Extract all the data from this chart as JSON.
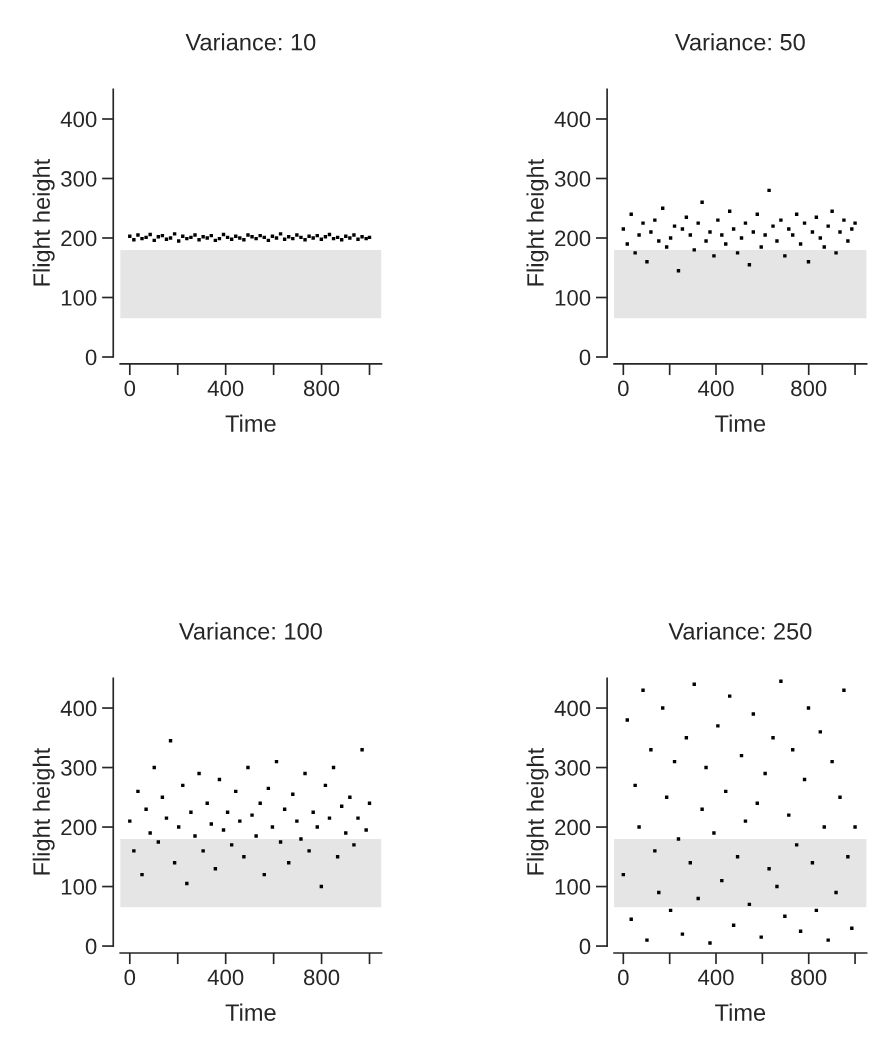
{
  "chart_data": [
    {
      "type": "scatter",
      "title": "Variance: 10",
      "xlabel": "Time",
      "ylabel": "Flight height",
      "xlim": [
        -40,
        1050
      ],
      "ylim": [
        0,
        450
      ],
      "xticks": [
        0,
        {
          "value": 200,
          "label": null
        },
        400,
        {
          "value": 600,
          "label": null
        },
        800,
        {
          "value": 1000,
          "label": null
        }
      ],
      "yticks": [
        0,
        100,
        200,
        300,
        400
      ],
      "grid": false,
      "legend": false,
      "marker": "square",
      "bands": [
        {
          "axis": "y",
          "from": 65,
          "to": 180,
          "color": "#e5e5e5"
        }
      ],
      "series": [
        {
          "color": "#000000",
          "x": [
            0,
            17,
            34,
            51,
            68,
            85,
            102,
            119,
            136,
            153,
            170,
            187,
            204,
            221,
            238,
            255,
            272,
            289,
            306,
            323,
            340,
            357,
            374,
            391,
            408,
            425,
            442,
            459,
            476,
            493,
            510,
            527,
            544,
            561,
            578,
            595,
            612,
            629,
            646,
            663,
            680,
            697,
            714,
            731,
            748,
            765,
            782,
            799,
            816,
            833,
            850,
            867,
            884,
            901,
            918,
            935,
            952,
            969,
            986,
            1000
          ],
          "values": [
            203,
            197,
            205,
            199,
            201,
            206,
            196,
            202,
            204,
            198,
            200,
            207,
            195,
            203,
            199,
            201,
            205,
            197,
            202,
            200,
            204,
            196,
            199,
            206,
            201,
            198,
            203,
            200,
            197,
            205,
            202,
            199,
            204,
            201,
            196,
            203,
            200,
            207,
            198,
            202,
            199,
            205,
            201,
            197,
            203,
            200,
            204,
            198,
            202,
            206,
            199,
            201,
            197,
            203,
            200,
            205,
            198,
            202,
            199,
            201
          ]
        }
      ]
    },
    {
      "type": "scatter",
      "title": "Variance: 50",
      "xlabel": "Time",
      "ylabel": "Flight height",
      "xlim": [
        -40,
        1050
      ],
      "ylim": [
        0,
        450
      ],
      "xticks": [
        0,
        {
          "value": 200,
          "label": null
        },
        400,
        {
          "value": 600,
          "label": null
        },
        800,
        {
          "value": 1000,
          "label": null
        }
      ],
      "yticks": [
        0,
        100,
        200,
        300,
        400
      ],
      "grid": false,
      "legend": false,
      "marker": "square",
      "bands": [
        {
          "axis": "y",
          "from": 65,
          "to": 180,
          "color": "#e5e5e5"
        }
      ],
      "series": [
        {
          "color": "#000000",
          "x": [
            0,
            17,
            34,
            51,
            68,
            85,
            102,
            119,
            136,
            153,
            170,
            187,
            204,
            221,
            238,
            255,
            272,
            289,
            306,
            323,
            340,
            357,
            374,
            391,
            408,
            425,
            442,
            459,
            476,
            493,
            510,
            527,
            544,
            561,
            578,
            595,
            612,
            629,
            646,
            663,
            680,
            697,
            714,
            731,
            748,
            765,
            782,
            799,
            816,
            833,
            850,
            867,
            884,
            901,
            918,
            935,
            952,
            969,
            986,
            1000
          ],
          "values": [
            215,
            190,
            240,
            175,
            205,
            225,
            160,
            210,
            230,
            195,
            250,
            185,
            200,
            220,
            145,
            215,
            235,
            205,
            180,
            225,
            260,
            195,
            210,
            170,
            230,
            205,
            190,
            245,
            215,
            175,
            200,
            225,
            155,
            210,
            240,
            185,
            205,
            280,
            220,
            195,
            230,
            170,
            215,
            205,
            240,
            190,
            225,
            160,
            210,
            235,
            200,
            185,
            220,
            245,
            175,
            210,
            230,
            195,
            215,
            225
          ]
        }
      ]
    },
    {
      "type": "scatter",
      "title": "Variance: 100",
      "xlabel": "Time",
      "ylabel": "Flight height",
      "xlim": [
        -40,
        1050
      ],
      "ylim": [
        0,
        450
      ],
      "xticks": [
        0,
        {
          "value": 200,
          "label": null
        },
        400,
        {
          "value": 600,
          "label": null
        },
        800,
        {
          "value": 1000,
          "label": null
        }
      ],
      "yticks": [
        0,
        100,
        200,
        300,
        400
      ],
      "grid": false,
      "legend": false,
      "marker": "square",
      "bands": [
        {
          "axis": "y",
          "from": 65,
          "to": 180,
          "color": "#e5e5e5"
        }
      ],
      "series": [
        {
          "color": "#000000",
          "x": [
            0,
            17,
            34,
            51,
            68,
            85,
            102,
            119,
            136,
            153,
            170,
            187,
            204,
            221,
            238,
            255,
            272,
            289,
            306,
            323,
            340,
            357,
            374,
            391,
            408,
            425,
            442,
            459,
            476,
            493,
            510,
            527,
            544,
            561,
            578,
            595,
            612,
            629,
            646,
            663,
            680,
            697,
            714,
            731,
            748,
            765,
            782,
            799,
            816,
            833,
            850,
            867,
            884,
            901,
            918,
            935,
            952,
            969,
            986,
            1000
          ],
          "values": [
            210,
            160,
            260,
            120,
            230,
            190,
            300,
            175,
            250,
            215,
            345,
            140,
            200,
            270,
            105,
            225,
            185,
            290,
            160,
            240,
            205,
            130,
            280,
            195,
            225,
            170,
            260,
            210,
            150,
            300,
            220,
            185,
            240,
            120,
            265,
            200,
            310,
            175,
            230,
            140,
            255,
            210,
            180,
            290,
            160,
            225,
            200,
            100,
            270,
            215,
            300,
            150,
            235,
            190,
            250,
            170,
            215,
            330,
            195,
            240
          ]
        }
      ]
    },
    {
      "type": "scatter",
      "title": "Variance: 250",
      "xlabel": "Time",
      "ylabel": "Flight height",
      "xlim": [
        -40,
        1050
      ],
      "ylim": [
        0,
        450
      ],
      "xticks": [
        0,
        {
          "value": 200,
          "label": null
        },
        400,
        {
          "value": 600,
          "label": null
        },
        800,
        {
          "value": 1000,
          "label": null
        }
      ],
      "yticks": [
        0,
        100,
        200,
        300,
        400
      ],
      "grid": false,
      "legend": false,
      "marker": "square",
      "bands": [
        {
          "axis": "y",
          "from": 65,
          "to": 180,
          "color": "#e5e5e5"
        }
      ],
      "series": [
        {
          "color": "#000000",
          "x": [
            0,
            17,
            34,
            51,
            68,
            85,
            102,
            119,
            136,
            153,
            170,
            187,
            204,
            221,
            238,
            255,
            272,
            289,
            306,
            323,
            340,
            357,
            374,
            391,
            408,
            425,
            442,
            459,
            476,
            493,
            510,
            527,
            544,
            561,
            578,
            595,
            612,
            629,
            646,
            663,
            680,
            697,
            714,
            731,
            748,
            765,
            782,
            799,
            816,
            833,
            850,
            867,
            884,
            901,
            918,
            935,
            952,
            969,
            986,
            1000
          ],
          "values": [
            120,
            380,
            45,
            270,
            200,
            430,
            10,
            330,
            160,
            90,
            400,
            250,
            60,
            310,
            180,
            20,
            350,
            140,
            440,
            80,
            230,
            300,
            5,
            190,
            370,
            110,
            260,
            420,
            35,
            150,
            320,
            210,
            70,
            390,
            240,
            15,
            290,
            130,
            350,
            100,
            445,
            50,
            220,
            330,
            170,
            25,
            280,
            400,
            140,
            60,
            360,
            200,
            10,
            310,
            90,
            250,
            430,
            150,
            30,
            200
          ]
        }
      ]
    }
  ]
}
